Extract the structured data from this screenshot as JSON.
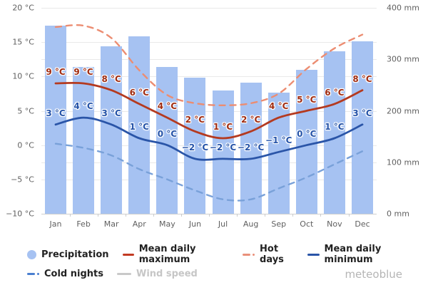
{
  "watermark": "meteoblue",
  "chart_data": {
    "type": "bar",
    "subtype": "climate chart: precipitation bars + temperature lines",
    "categories": [
      "Jan",
      "Feb",
      "Mar",
      "Apr",
      "May",
      "Jun",
      "Jul",
      "Aug",
      "Sep",
      "Oct",
      "Nov",
      "Dec"
    ],
    "precipitation": {
      "name": "Precipitation",
      "unit": "mm",
      "values": [
        365,
        285,
        325,
        345,
        285,
        265,
        240,
        255,
        235,
        280,
        315,
        335
      ],
      "color": "#a6c2f2"
    },
    "series": [
      {
        "name": "Mean daily maximum",
        "style": "solid",
        "unit": "°C",
        "values": [
          9,
          9,
          8,
          6,
          4,
          2,
          1,
          2,
          4,
          5,
          6,
          8
        ],
        "color": "#b43a20",
        "label_color": "#a02c12",
        "show_labels": true
      },
      {
        "name": "Hot days",
        "style": "dashed",
        "unit": "°C",
        "values": [
          17.2,
          17.4,
          15.6,
          10.9,
          7.3,
          6.1,
          5.8,
          6.1,
          7.5,
          11.1,
          14.1,
          16.1
        ],
        "color": "#ec8d72",
        "show_labels": false
      },
      {
        "name": "Mean daily minimum",
        "style": "solid",
        "unit": "°C",
        "values": [
          3,
          4,
          3,
          1,
          0,
          -2,
          -2,
          -2,
          -1,
          0,
          1,
          3
        ],
        "color": "#2a55a8",
        "label_color": "#2553a8",
        "show_labels": true
      },
      {
        "name": "Cold nights",
        "style": "dashed",
        "unit": "°C",
        "values": [
          0.2,
          -0.4,
          -1.5,
          -3.5,
          -5,
          -6.6,
          -7.9,
          -7.9,
          -6.3,
          -4.7,
          -2.8,
          -0.9
        ],
        "color": "#79a1d9",
        "show_labels": false
      }
    ],
    "left_axis": {
      "unit": "°C",
      "min": -10,
      "max": 20,
      "ticks": [
        20,
        15,
        10,
        5,
        0,
        -5,
        -10
      ]
    },
    "right_axis": {
      "unit": "mm",
      "min": 0,
      "max": 400,
      "ticks": [
        400,
        300,
        200,
        100,
        0
      ]
    },
    "grid": true,
    "legend_position": "bottom"
  },
  "legend": {
    "rows": [
      [
        {
          "label": "Precipitation",
          "swatch": "circle",
          "color": "#a6c2f2",
          "enabled": true
        },
        {
          "label": "Mean daily maximum",
          "swatch": "line",
          "color": "#c23a22",
          "enabled": true
        },
        {
          "label": "Hot days",
          "swatch": "dash-dot",
          "color": "#e9907a",
          "enabled": true
        },
        {
          "label": "Mean daily minimum",
          "swatch": "line",
          "color": "#2a55a8",
          "enabled": true
        }
      ],
      [
        {
          "label": "Cold nights",
          "swatch": "dash-dot",
          "color": "#4a7fd0",
          "enabled": true
        },
        {
          "label": "Wind speed",
          "swatch": "line",
          "color": "#c9c9c9",
          "enabled": false
        }
      ]
    ]
  }
}
